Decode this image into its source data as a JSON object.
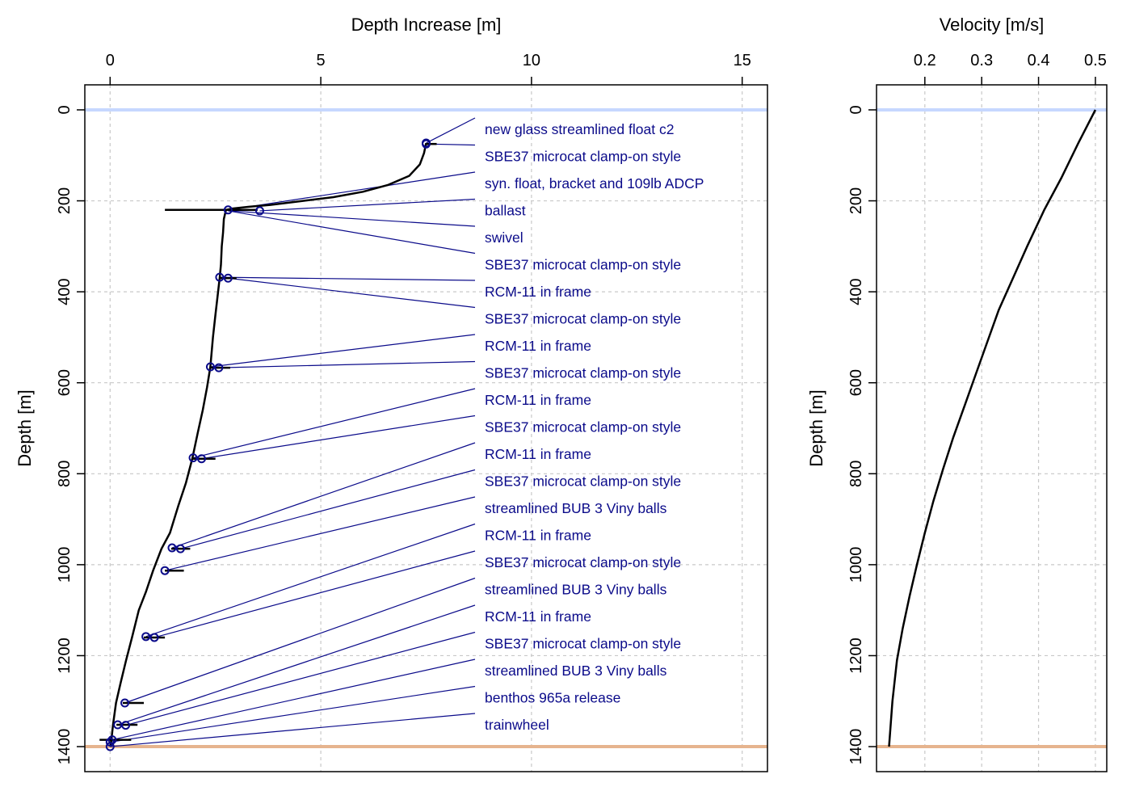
{
  "chart_data": [
    {
      "type": "line",
      "xlabel": "Depth Increase [m]",
      "ylabel": "Depth [m]",
      "x_ticks": [
        0,
        5,
        10,
        15
      ],
      "y_ticks": [
        0,
        200,
        400,
        600,
        800,
        1000,
        1200,
        1400
      ],
      "xlim": [
        -0.6,
        15.6
      ],
      "ylim": [
        1455,
        -55
      ],
      "grid": true,
      "surface_color": "#c6d7ff",
      "bottom_color": "#e6b48e",
      "water_depth": 1400,
      "curve": {
        "x": [
          7.5,
          7.45,
          7.35,
          7.1,
          6.6,
          6.0,
          5.3,
          4.5,
          3.8,
          3.3,
          2.9,
          2.75,
          2.7,
          2.68,
          2.65,
          2.63,
          2.6,
          2.55,
          2.5,
          2.44,
          2.38,
          2.3,
          2.2,
          2.08,
          1.95,
          1.8,
          1.62,
          1.42,
          1.22,
          1.02,
          0.85,
          0.68,
          0.52,
          0.38,
          0.25,
          0.14,
          0.07,
          0.03,
          0.0
        ],
        "y": [
          73,
          95,
          120,
          145,
          165,
          180,
          192,
          201,
          209,
          213,
          217,
          220,
          240,
          270,
          300,
          340,
          370,
          410,
          450,
          500,
          565,
          610,
          660,
          710,
          767,
          820,
          870,
          930,
          965,
          1013,
          1060,
          1100,
          1160,
          1210,
          1260,
          1304,
          1352,
          1385,
          1400
        ]
      },
      "drag_bars": [
        {
          "y": 75,
          "x0": 7.5,
          "x1": 7.75
        },
        {
          "y": 220,
          "x0": 1.3,
          "x1": 3.5
        },
        {
          "y": 370,
          "x0": 2.6,
          "x1": 3.0
        },
        {
          "y": 567,
          "x0": 2.4,
          "x1": 2.85
        },
        {
          "y": 767,
          "x0": 1.95,
          "x1": 2.5
        },
        {
          "y": 965,
          "x0": 1.45,
          "x1": 1.9
        },
        {
          "y": 1013,
          "x0": 1.3,
          "x1": 1.75
        },
        {
          "y": 1160,
          "x0": 0.8,
          "x1": 1.3
        },
        {
          "y": 1304,
          "x0": 0.3,
          "x1": 0.8
        },
        {
          "y": 1352,
          "x0": 0.15,
          "x1": 0.65
        },
        {
          "y": 1385,
          "x0": -0.25,
          "x1": 0.5
        }
      ],
      "markers": [
        {
          "x": 7.5,
          "y": 73
        },
        {
          "x": 7.5,
          "y": 75
        },
        {
          "x": 2.8,
          "y": 220
        },
        {
          "x": 3.55,
          "y": 222
        },
        {
          "x": 2.6,
          "y": 368
        },
        {
          "x": 2.8,
          "y": 370
        },
        {
          "x": 2.38,
          "y": 565
        },
        {
          "x": 2.58,
          "y": 567
        },
        {
          "x": 1.97,
          "y": 765
        },
        {
          "x": 2.17,
          "y": 767
        },
        {
          "x": 1.47,
          "y": 963
        },
        {
          "x": 1.67,
          "y": 965
        },
        {
          "x": 1.3,
          "y": 1013
        },
        {
          "x": 0.85,
          "y": 1158
        },
        {
          "x": 1.05,
          "y": 1160
        },
        {
          "x": 0.35,
          "y": 1304
        },
        {
          "x": 0.18,
          "y": 1352
        },
        {
          "x": 0.37,
          "y": 1353
        },
        {
          "x": 0.05,
          "y": 1385
        },
        {
          "x": 0.0,
          "y": 1390
        },
        {
          "x": 0.0,
          "y": 1400
        }
      ],
      "items": [
        {
          "label": "new glass streamlined float c2",
          "x": 7.5,
          "y": 73
        },
        {
          "label": "SBE37 microcat clamp-on style",
          "x": 7.5,
          "y": 75
        },
        {
          "label": "syn. float, bracket and 109lb ADCP",
          "x": 2.8,
          "y": 220
        },
        {
          "label": "ballast",
          "x": 3.55,
          "y": 222
        },
        {
          "label": "swivel",
          "x": 2.8,
          "y": 222
        },
        {
          "label": "SBE37 microcat clamp-on style",
          "x": 2.8,
          "y": 222
        },
        {
          "label": "RCM-11 in frame",
          "x": 2.6,
          "y": 368
        },
        {
          "label": "SBE37 microcat clamp-on style",
          "x": 2.8,
          "y": 370
        },
        {
          "label": "RCM-11 in frame",
          "x": 2.38,
          "y": 565
        },
        {
          "label": "SBE37 microcat clamp-on style",
          "x": 2.58,
          "y": 567
        },
        {
          "label": "RCM-11 in frame",
          "x": 1.97,
          "y": 765
        },
        {
          "label": "SBE37 microcat clamp-on style",
          "x": 2.17,
          "y": 767
        },
        {
          "label": "RCM-11 in frame",
          "x": 1.47,
          "y": 963
        },
        {
          "label": "SBE37 microcat clamp-on style",
          "x": 1.67,
          "y": 965
        },
        {
          "label": "streamlined BUB 3 Viny balls",
          "x": 1.3,
          "y": 1013
        },
        {
          "label": "RCM-11 in frame",
          "x": 0.85,
          "y": 1158
        },
        {
          "label": "SBE37 microcat clamp-on style",
          "x": 1.05,
          "y": 1160
        },
        {
          "label": "streamlined BUB 3 Viny balls",
          "x": 0.35,
          "y": 1304
        },
        {
          "label": "RCM-11 in frame",
          "x": 0.18,
          "y": 1352
        },
        {
          "label": "SBE37 microcat clamp-on style",
          "x": 0.37,
          "y": 1353
        },
        {
          "label": "streamlined BUB 3 Viny balls",
          "x": 0.05,
          "y": 1385
        },
        {
          "label": "benthos 965a release",
          "x": 0.0,
          "y": 1390
        },
        {
          "label": "trainwheel",
          "x": 0.0,
          "y": 1400
        }
      ]
    },
    {
      "type": "line",
      "xlabel": "Velocity [m/s]",
      "ylabel": "Depth [m]",
      "x_ticks": [
        0.2,
        0.3,
        0.4,
        0.5
      ],
      "x_tick_labels": [
        "0.2",
        "0.3",
        "0.4",
        "0.5"
      ],
      "y_ticks": [
        0,
        200,
        400,
        600,
        800,
        1000,
        1200,
        1400
      ],
      "xlim": [
        0.115,
        0.52
      ],
      "ylim": [
        1455,
        -55
      ],
      "grid": true,
      "surface_color": "#c6d7ff",
      "bottom_color": "#e6b48e",
      "water_depth": 1400,
      "curve": {
        "x": [
          0.5,
          0.47,
          0.44,
          0.41,
          0.38,
          0.355,
          0.33,
          0.31,
          0.29,
          0.27,
          0.25,
          0.232,
          0.215,
          0.2,
          0.186,
          0.173,
          0.161,
          0.151,
          0.143,
          0.137
        ],
        "y": [
          0,
          73,
          150,
          220,
          300,
          370,
          440,
          510,
          580,
          650,
          720,
          790,
          860,
          930,
          1000,
          1070,
          1140,
          1210,
          1300,
          1400
        ]
      }
    }
  ]
}
